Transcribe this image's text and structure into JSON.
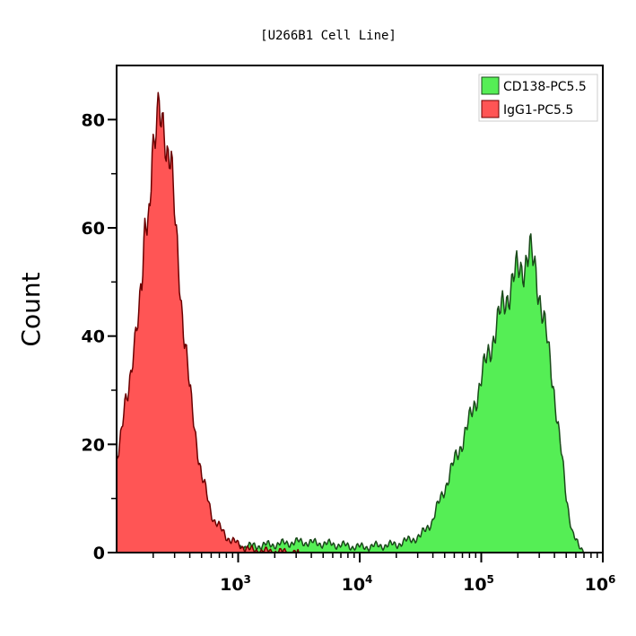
{
  "chart_data": {
    "type": "area",
    "title": "[U266B1 Cell Line]",
    "xlabel": "",
    "ylabel": "Count",
    "xscale": "log",
    "xlim": [
      100,
      1000000
    ],
    "ylim": [
      0,
      90
    ],
    "grid": false,
    "legend_position": "top-right",
    "x_ticks": [
      {
        "value": 1000,
        "base": "10",
        "exp": "3"
      },
      {
        "value": 10000,
        "base": "10",
        "exp": "4"
      },
      {
        "value": 100000,
        "base": "10",
        "exp": "5"
      },
      {
        "value": 1000000,
        "base": "10",
        "exp": "6"
      }
    ],
    "y_ticks": [
      0,
      20,
      40,
      60,
      80
    ],
    "series": [
      {
        "name": "CD138-PC5.5",
        "color": "#55ee55",
        "stroke": "#1a4a1a",
        "x": [
          100,
          316,
          1000,
          1995,
          3162,
          6310,
          10000,
          19953,
          31623,
          39811,
          50119,
          63096,
          79433,
          100000,
          125893,
          158489,
          199526,
          251189,
          281838,
          316228,
          398107,
          446684,
          501187,
          562341,
          630957,
          707946
        ],
        "y": [
          0.3,
          0.5,
          1,
          1.5,
          2,
          1.5,
          1,
          1.5,
          3,
          6,
          12,
          18,
          24,
          32,
          40,
          47,
          52,
          55,
          52,
          45,
          30,
          20,
          10,
          4,
          1,
          0
        ]
      },
      {
        "name": "IgG1-PC5.5",
        "color": "#ff5555",
        "stroke": "#6b0000",
        "x": [
          100,
          126,
          158,
          200,
          224,
          251,
          282,
          316,
          398,
          501,
          631,
          794,
          1000,
          1259,
          1585,
          3162
        ],
        "y": [
          18,
          30,
          50,
          72,
          82,
          78,
          70,
          55,
          30,
          14,
          6,
          3,
          1.5,
          0.5,
          0.3,
          0
        ]
      }
    ]
  }
}
